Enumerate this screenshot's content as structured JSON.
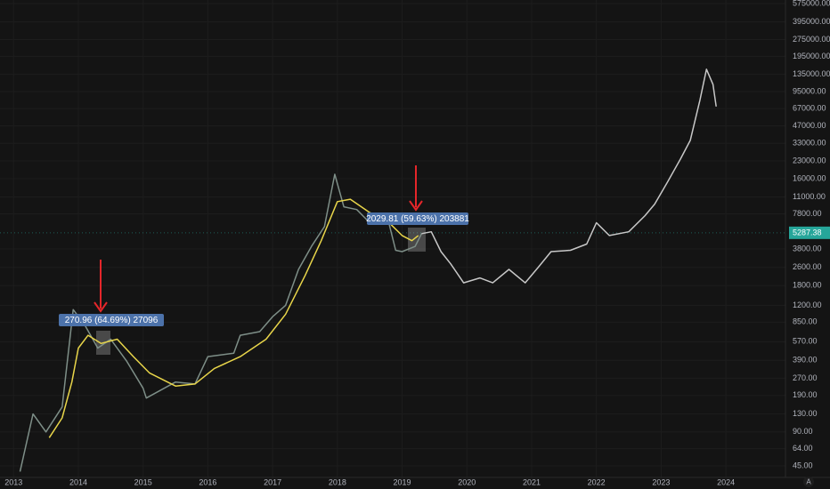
{
  "chart_data": {
    "type": "line",
    "log_scale": true,
    "grid": true,
    "xlim": [
      2012.79,
      2024.92
    ],
    "xticks": [
      2013,
      2014,
      2015,
      2016,
      2017,
      2018,
      2019,
      2020,
      2021,
      2022,
      2023,
      2024
    ],
    "ylim": [
      35.5,
      618000
    ],
    "yticks": [
      {
        "value": 45,
        "label": "45.00"
      },
      {
        "value": 64,
        "label": "64.00"
      },
      {
        "value": 90,
        "label": "90.00"
      },
      {
        "value": 130,
        "label": "130.00"
      },
      {
        "value": 190,
        "label": "190.00"
      },
      {
        "value": 270,
        "label": "270.00"
      },
      {
        "value": 390,
        "label": "390.00"
      },
      {
        "value": 570,
        "label": "570.00"
      },
      {
        "value": 850,
        "label": "850.00"
      },
      {
        "value": 1200,
        "label": "1200.00"
      },
      {
        "value": 1800,
        "label": "1800.00"
      },
      {
        "value": 2600,
        "label": "2600.00"
      },
      {
        "value": 3800,
        "label": "3800.00"
      },
      {
        "value": 7800,
        "label": "7800.00"
      },
      {
        "value": 11000,
        "label": "11000.00"
      },
      {
        "value": 16000,
        "label": "16000.00"
      },
      {
        "value": 23000,
        "label": "23000.00"
      },
      {
        "value": 33000,
        "label": "33000.00"
      },
      {
        "value": 47000,
        "label": "47000.00"
      },
      {
        "value": 67000,
        "label": "67000.00"
      },
      {
        "value": 95000,
        "label": "95000.00"
      },
      {
        "value": 135000,
        "label": "135000.00"
      },
      {
        "value": 195000,
        "label": "195000.00"
      },
      {
        "value": 275000,
        "label": "275000.00"
      },
      {
        "value": 395000,
        "label": "395000.00"
      },
      {
        "value": 575000,
        "label": "575000.00"
      }
    ],
    "series": [
      {
        "color": "#7e8f88",
        "x": [
          2013.1,
          2013.3,
          2013.5,
          2013.75,
          2013.92,
          2014.1,
          2014.3,
          2014.5,
          2014.75,
          2015.0,
          2015.05,
          2015.5,
          2015.8,
          2016.0,
          2016.4,
          2016.5,
          2016.8,
          2017.0,
          2017.2,
          2017.4,
          2017.6,
          2017.8,
          2017.96,
          2018.1,
          2018.3,
          2018.5,
          2018.8,
          2018.9,
          2019.0,
          2019.2,
          2019.3
        ],
        "values": [
          40,
          130,
          90,
          150,
          1100,
          800,
          500,
          600,
          380,
          220,
          180,
          250,
          240,
          420,
          450,
          650,
          700,
          950,
          1200,
          2500,
          4000,
          6000,
          17500,
          9000,
          8500,
          6500,
          6300,
          3700,
          3600,
          4000,
          5200
        ]
      },
      {
        "color": "#e8d54a",
        "x": [
          2013.55,
          2013.75,
          2013.9,
          2014.0,
          2014.15,
          2014.35,
          2014.6,
          2014.85,
          2015.1,
          2015.5,
          2015.8,
          2016.1,
          2016.5,
          2016.9,
          2017.2,
          2017.5,
          2017.75,
          2018.0,
          2018.2,
          2018.5,
          2018.8,
          2019.0,
          2019.15,
          2019.25
        ],
        "values": [
          80,
          120,
          250,
          500,
          650,
          550,
          600,
          420,
          300,
          230,
          240,
          330,
          420,
          600,
          1000,
          2200,
          4500,
          10000,
          10500,
          8000,
          6500,
          5000,
          4500,
          5000
        ]
      },
      {
        "color": "#c8c8c8",
        "x": [
          2019.3,
          2019.45,
          2019.6,
          2019.75,
          2019.95,
          2020.2,
          2020.4,
          2020.65,
          2020.9,
          2021.1,
          2021.3,
          2021.6,
          2021.85,
          2022.0,
          2022.2,
          2022.5,
          2022.75,
          2022.9,
          2023.1,
          2023.3,
          2023.45,
          2023.6,
          2023.7,
          2023.8,
          2023.85
        ],
        "values": [
          5200,
          5400,
          3600,
          2800,
          1900,
          2100,
          1900,
          2500,
          1900,
          2600,
          3600,
          3700,
          4200,
          6500,
          5000,
          5400,
          7500,
          9500,
          15000,
          24000,
          35000,
          80000,
          150000,
          110000,
          70000
        ]
      }
    ],
    "current_price": {
      "value": 5287.38,
      "label": "5287.38"
    },
    "annotations": [
      "270.96 (64.69%) 27096",
      "2029.81 (59.63%) 203881"
    ],
    "auto_scale_button": "A"
  }
}
